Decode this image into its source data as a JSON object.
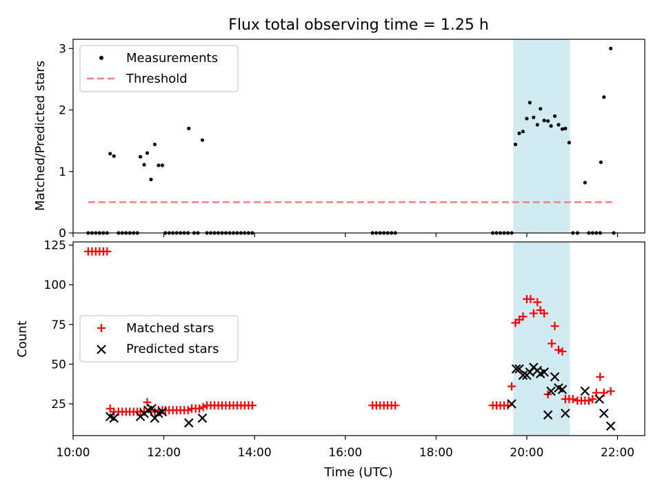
{
  "chart_data": [
    {
      "type": "scatter",
      "title": "Flux total observing time = 1.25 h",
      "xlabel": "",
      "ylabel": "Matched/Predicted stars",
      "xlim": [
        "10:00",
        "22:36"
      ],
      "ylim": [
        0,
        3.15
      ],
      "yticks": [
        0,
        1,
        2,
        3
      ],
      "legend_position": "upper left",
      "highlight_span": {
        "start": "19:42",
        "end": "20:57"
      },
      "series": [
        {
          "name": "Measurements",
          "style": "dots",
          "color": "#000000",
          "points": [
            [
              "10:20",
              0
            ],
            [
              "10:25",
              0
            ],
            [
              "10:30",
              0
            ],
            [
              "10:35",
              0
            ],
            [
              "10:40",
              0
            ],
            [
              "10:45",
              0
            ],
            [
              "10:49",
              1.29
            ],
            [
              "10:54",
              1.25
            ],
            [
              "11:00",
              0
            ],
            [
              "11:05",
              0
            ],
            [
              "11:10",
              0
            ],
            [
              "11:15",
              0
            ],
            [
              "11:20",
              0
            ],
            [
              "11:25",
              0
            ],
            [
              "11:29",
              1.24
            ],
            [
              "11:34",
              1.11
            ],
            [
              "11:38",
              1.3
            ],
            [
              "11:43",
              0.87
            ],
            [
              "11:48",
              1.44
            ],
            [
              "11:53",
              1.1
            ],
            [
              "11:58",
              1.1
            ],
            [
              "12:02",
              0
            ],
            [
              "12:07",
              0
            ],
            [
              "12:12",
              0
            ],
            [
              "12:17",
              0
            ],
            [
              "12:22",
              0
            ],
            [
              "12:27",
              0
            ],
            [
              "12:32",
              0
            ],
            [
              "12:33",
              1.7
            ],
            [
              "12:40",
              0
            ],
            [
              "12:45",
              0
            ],
            [
              "12:51",
              1.51
            ],
            [
              "12:57",
              0
            ],
            [
              "13:02",
              0
            ],
            [
              "13:07",
              0
            ],
            [
              "13:12",
              0
            ],
            [
              "13:17",
              0
            ],
            [
              "13:22",
              0
            ],
            [
              "13:27",
              0
            ],
            [
              "13:32",
              0
            ],
            [
              "13:37",
              0
            ],
            [
              "13:42",
              0
            ],
            [
              "13:47",
              0
            ],
            [
              "13:52",
              0
            ],
            [
              "13:57",
              0
            ],
            [
              "16:36",
              0
            ],
            [
              "16:41",
              0
            ],
            [
              "16:46",
              0
            ],
            [
              "16:51",
              0
            ],
            [
              "16:56",
              0
            ],
            [
              "17:01",
              0
            ],
            [
              "17:06",
              0
            ],
            [
              "19:15",
              0
            ],
            [
              "19:20",
              0
            ],
            [
              "19:25",
              0
            ],
            [
              "19:30",
              0
            ],
            [
              "19:35",
              0
            ],
            [
              "19:40",
              0
            ],
            [
              "19:45",
              1.44
            ],
            [
              "19:50",
              1.62
            ],
            [
              "19:55",
              1.65
            ],
            [
              "20:00",
              1.86
            ],
            [
              "20:04",
              2.12
            ],
            [
              "20:09",
              1.88
            ],
            [
              "20:14",
              1.76
            ],
            [
              "20:18",
              2.02
            ],
            [
              "20:23",
              1.83
            ],
            [
              "20:28",
              1.82
            ],
            [
              "20:32",
              1.74
            ],
            [
              "20:37",
              1.9
            ],
            [
              "20:42",
              1.76
            ],
            [
              "20:47",
              1.69
            ],
            [
              "20:51",
              1.7
            ],
            [
              "20:56",
              1.47
            ],
            [
              "21:01",
              0
            ],
            [
              "21:07",
              0
            ],
            [
              "21:17",
              0.82
            ],
            [
              "21:22",
              0
            ],
            [
              "21:27",
              0
            ],
            [
              "21:32",
              0
            ],
            [
              "21:37",
              0
            ],
            [
              "21:38",
              1.15
            ],
            [
              "21:42",
              2.21
            ],
            [
              "21:51",
              3.0
            ],
            [
              "21:55",
              0
            ]
          ]
        },
        {
          "name": "Threshold",
          "style": "dashed",
          "color": "#f08080",
          "x": [
            "10:20",
            "21:55"
          ],
          "y": [
            0.5,
            0.5
          ]
        }
      ]
    },
    {
      "type": "scatter",
      "title": "",
      "xlabel": "Time (UTC)",
      "ylabel": "Count",
      "xlim": [
        "10:00",
        "22:36"
      ],
      "ylim": [
        5,
        127
      ],
      "yticks": [
        25,
        50,
        75,
        100,
        125
      ],
      "xticks": [
        "10:00",
        "12:00",
        "14:00",
        "16:00",
        "18:00",
        "20:00",
        "22:00"
      ],
      "legend_position": "center left",
      "highlight_span": {
        "start": "19:42",
        "end": "20:57"
      },
      "series": [
        {
          "name": "Matched stars",
          "marker": "+",
          "color": "#ff0000",
          "points": [
            [
              "10:20",
              121
            ],
            [
              "10:25",
              121
            ],
            [
              "10:30",
              121
            ],
            [
              "10:35",
              121
            ],
            [
              "10:40",
              121
            ],
            [
              "10:45",
              121
            ],
            [
              "10:49",
              22
            ],
            [
              "10:54",
              20
            ],
            [
              "11:00",
              20
            ],
            [
              "11:05",
              20
            ],
            [
              "11:10",
              20
            ],
            [
              "11:15",
              20
            ],
            [
              "11:20",
              20
            ],
            [
              "11:25",
              20
            ],
            [
              "11:29",
              20
            ],
            [
              "11:34",
              20
            ],
            [
              "11:38",
              26
            ],
            [
              "11:43",
              20
            ],
            [
              "11:48",
              20
            ],
            [
              "11:53",
              21
            ],
            [
              "11:58",
              21
            ],
            [
              "12:02",
              21
            ],
            [
              "12:07",
              21
            ],
            [
              "12:12",
              21
            ],
            [
              "12:17",
              21
            ],
            [
              "12:22",
              21
            ],
            [
              "12:27",
              21
            ],
            [
              "12:32",
              21
            ],
            [
              "12:37",
              22
            ],
            [
              "12:42",
              22
            ],
            [
              "12:47",
              22
            ],
            [
              "12:52",
              23
            ],
            [
              "12:57",
              24
            ],
            [
              "13:02",
              24
            ],
            [
              "13:07",
              24
            ],
            [
              "13:12",
              24
            ],
            [
              "13:17",
              24
            ],
            [
              "13:22",
              24
            ],
            [
              "13:27",
              24
            ],
            [
              "13:32",
              24
            ],
            [
              "13:37",
              24
            ],
            [
              "13:42",
              24
            ],
            [
              "13:47",
              24
            ],
            [
              "13:52",
              24
            ],
            [
              "13:57",
              24
            ],
            [
              "16:36",
              24
            ],
            [
              "16:41",
              24
            ],
            [
              "16:46",
              24
            ],
            [
              "16:51",
              24
            ],
            [
              "16:56",
              24
            ],
            [
              "17:01",
              24
            ],
            [
              "17:06",
              24
            ],
            [
              "19:15",
              24
            ],
            [
              "19:20",
              24
            ],
            [
              "19:25",
              24
            ],
            [
              "19:30",
              24
            ],
            [
              "19:35",
              24
            ],
            [
              "19:40",
              36
            ],
            [
              "19:45",
              76
            ],
            [
              "19:50",
              78
            ],
            [
              "19:55",
              80
            ],
            [
              "20:00",
              91
            ],
            [
              "20:05",
              91
            ],
            [
              "20:09",
              82
            ],
            [
              "20:14",
              89
            ],
            [
              "20:18",
              84
            ],
            [
              "20:23",
              82
            ],
            [
              "20:28",
              31
            ],
            [
              "20:33",
              63
            ],
            [
              "20:37",
              74
            ],
            [
              "20:42",
              59
            ],
            [
              "20:47",
              58
            ],
            [
              "20:51",
              28
            ],
            [
              "20:56",
              28
            ],
            [
              "21:01",
              28
            ],
            [
              "21:07",
              27
            ],
            [
              "21:12",
              27
            ],
            [
              "21:17",
              27
            ],
            [
              "21:22",
              27
            ],
            [
              "21:27",
              28
            ],
            [
              "21:32",
              32
            ],
            [
              "21:37",
              42
            ],
            [
              "21:42",
              32
            ],
            [
              "21:51",
              33
            ]
          ]
        },
        {
          "name": "Predicted stars",
          "marker": "x",
          "color": "#000000",
          "points": [
            [
              "10:49",
              17
            ],
            [
              "10:54",
              16
            ],
            [
              "11:29",
              17
            ],
            [
              "11:34",
              19
            ],
            [
              "11:39",
              21
            ],
            [
              "11:44",
              22
            ],
            [
              "11:48",
              16
            ],
            [
              "11:53",
              19
            ],
            [
              "11:58",
              20
            ],
            [
              "12:33",
              13
            ],
            [
              "12:51",
              16
            ],
            [
              "19:40",
              25
            ],
            [
              "19:46",
              47
            ],
            [
              "19:50",
              47
            ],
            [
              "19:55",
              43
            ],
            [
              "20:00",
              43
            ],
            [
              "20:04",
              45
            ],
            [
              "20:09",
              48
            ],
            [
              "20:14",
              46
            ],
            [
              "20:18",
              44
            ],
            [
              "20:23",
              45
            ],
            [
              "20:28",
              18
            ],
            [
              "20:32",
              33
            ],
            [
              "20:37",
              42
            ],
            [
              "20:42",
              35
            ],
            [
              "20:47",
              34
            ],
            [
              "20:51",
              19
            ],
            [
              "21:17",
              33
            ],
            [
              "21:36",
              28
            ],
            [
              "21:42",
              19
            ],
            [
              "21:51",
              11
            ]
          ]
        }
      ]
    }
  ]
}
